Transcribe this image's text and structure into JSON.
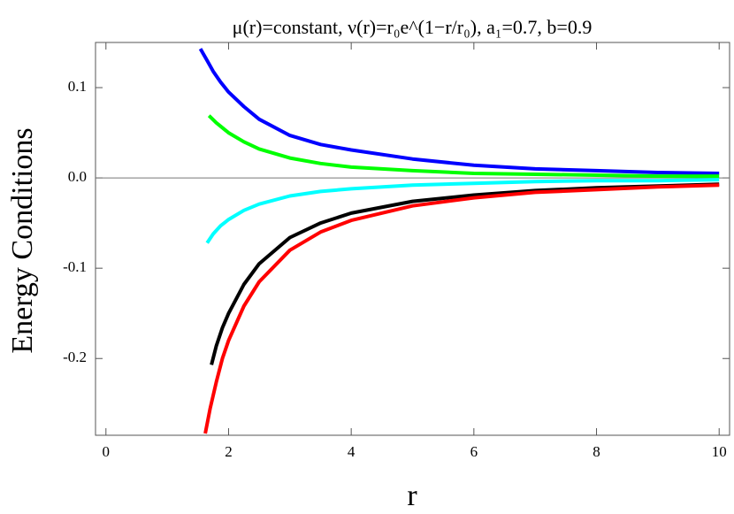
{
  "chart_data": {
    "type": "line",
    "title": "μ(r)=constant, ν(r)=r₀e^(1−r/r₀), a₁=0.7, b=0.9",
    "x_label": "r",
    "y_label": "Energy Conditions",
    "xlim": [
      -0.17,
      10.17
    ],
    "ylim": [
      -0.285,
      0.15
    ],
    "xticks": [
      0,
      2,
      4,
      6,
      8,
      10
    ],
    "yticks": [
      -0.2,
      -0.1,
      {
        "value": 0,
        "label": "0.0"
      },
      0.1
    ],
    "zero_line": true,
    "series": [
      {
        "color": "#0000ff",
        "x": [
          1.54,
          1.65,
          1.75,
          1.87,
          2,
          2.25,
          2.5,
          3,
          3.5,
          4,
          5,
          6,
          7,
          8,
          9,
          10
        ],
        "values": [
          0.143,
          0.13,
          0.118,
          0.106,
          0.095,
          0.079,
          0.065,
          0.047,
          0.037,
          0.031,
          0.021,
          0.014,
          0.01,
          0.008,
          0.006,
          0.005
        ]
      },
      {
        "color": "#00ff00",
        "x": [
          1.68,
          1.8,
          2,
          2.25,
          2.5,
          3,
          3.5,
          4,
          5,
          6,
          7,
          8,
          9,
          10
        ],
        "values": [
          0.069,
          0.061,
          0.05,
          0.04,
          0.032,
          0.022,
          0.016,
          0.012,
          0.008,
          0.005,
          0.004,
          0.003,
          0.002,
          0.002
        ]
      },
      {
        "color": "#00ffff",
        "x": [
          1.65,
          1.75,
          1.87,
          2,
          2.25,
          2.5,
          3,
          3.5,
          4,
          5,
          6,
          7,
          8,
          9,
          10
        ],
        "values": [
          -0.072,
          -0.062,
          -0.053,
          -0.046,
          -0.036,
          -0.029,
          -0.02,
          -0.015,
          -0.012,
          -0.008,
          -0.006,
          -0.004,
          -0.003,
          -0.003,
          -0.002
        ]
      },
      {
        "color": "#000000",
        "x": [
          1.72,
          1.8,
          1.9,
          2,
          2.25,
          2.5,
          3,
          3.5,
          4,
          5,
          6,
          7,
          8,
          9,
          10
        ],
        "values": [
          -0.207,
          -0.186,
          -0.166,
          -0.15,
          -0.118,
          -0.095,
          -0.066,
          -0.05,
          -0.039,
          -0.026,
          -0.019,
          -0.014,
          -0.011,
          -0.009,
          -0.007
        ]
      },
      {
        "color": "#ff0000",
        "x": [
          1.62,
          1.7,
          1.8,
          1.9,
          2,
          2.25,
          2.5,
          3,
          3.5,
          4,
          5,
          6,
          7,
          8,
          9,
          10
        ],
        "values": [
          -0.283,
          -0.255,
          -0.226,
          -0.2,
          -0.18,
          -0.142,
          -0.115,
          -0.08,
          -0.06,
          -0.047,
          -0.031,
          -0.022,
          -0.016,
          -0.013,
          -0.01,
          -0.008
        ]
      }
    ]
  }
}
